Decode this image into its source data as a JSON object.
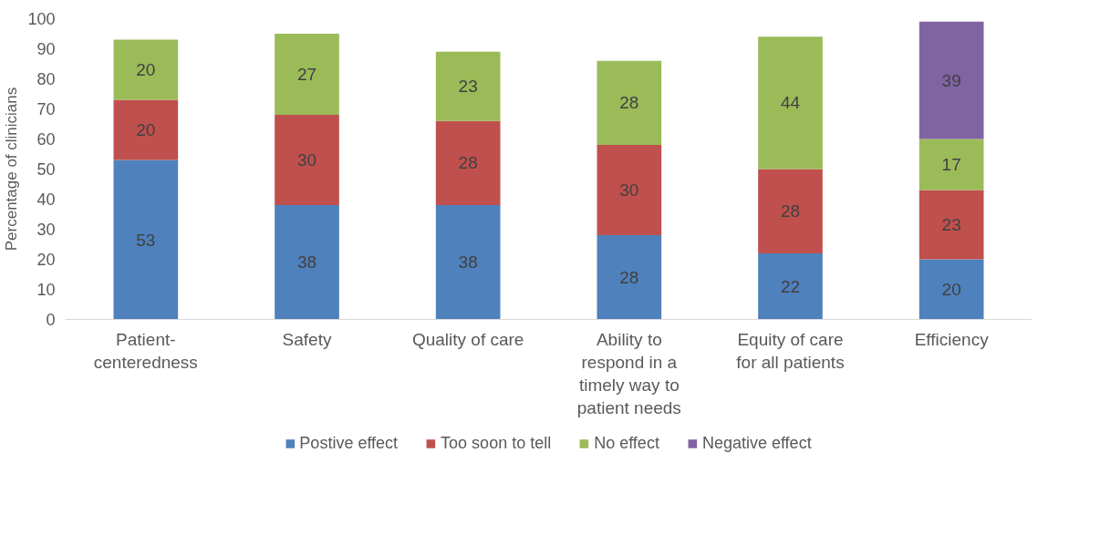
{
  "chart_data": {
    "type": "bar",
    "stacked": true,
    "ylabel": "Percentage of clinicians",
    "categories": [
      "Patient-centeredness",
      "Safety",
      "Quality of care",
      "Ability to respond in a timely way to patient needs",
      "Equity of care for all patients",
      "Efficiency"
    ],
    "series": [
      {
        "name": "Postive effect",
        "color": "#4f81bd",
        "values": [
          53,
          38,
          38,
          28,
          22,
          20
        ]
      },
      {
        "name": "Too soon to tell",
        "color": "#c0504d",
        "values": [
          20,
          30,
          28,
          30,
          28,
          23
        ]
      },
      {
        "name": "No effect",
        "color": "#9bbb59",
        "values": [
          20,
          27,
          23,
          28,
          44,
          17
        ]
      },
      {
        "name": "Negative effect",
        "color": "#8064a2",
        "values": [
          null,
          null,
          null,
          null,
          null,
          39
        ]
      }
    ],
    "ylim": [
      0,
      100
    ],
    "yticks": [
      0,
      10,
      20,
      30,
      40,
      50,
      60,
      70,
      80,
      90,
      100
    ],
    "data_labels": true,
    "grid": false,
    "legend": "bottom"
  }
}
